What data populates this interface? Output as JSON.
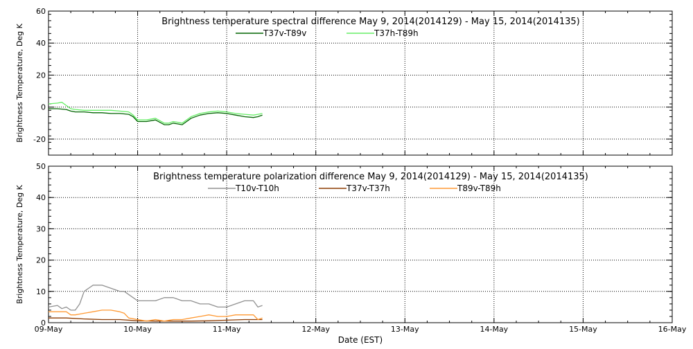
{
  "figure": {
    "xlabel": "Date (EST)",
    "x_ticks": [
      "09-May",
      "10-May",
      "11-May",
      "12-May",
      "13-May",
      "14-May",
      "15-May",
      "16-May"
    ]
  },
  "chart_data": [
    {
      "type": "line",
      "title": "Brightness temperature spectral difference     May  9, 2014(2014129) - May 15, 2014(2014135)",
      "ylabel": "Brightness Temperature, Deg K",
      "xlim": [
        0,
        7
      ],
      "ylim": [
        -30,
        60
      ],
      "y_ticks": [
        -20,
        0,
        20,
        40,
        60
      ],
      "grid": true,
      "legend_position": "top-center",
      "series": [
        {
          "name": "T37v-T89v",
          "color": "#006400",
          "x": [
            0.0,
            0.1,
            0.2,
            0.25,
            0.3,
            0.4,
            0.5,
            0.6,
            0.7,
            0.8,
            0.9,
            0.95,
            1.0,
            1.1,
            1.2,
            1.3,
            1.35,
            1.4,
            1.5,
            1.6,
            1.7,
            1.8,
            1.9,
            2.0,
            2.1,
            2.2,
            2.3,
            2.35,
            2.4
          ],
          "y": [
            -1,
            -1,
            -1.5,
            -2.5,
            -3,
            -3,
            -3.5,
            -3.5,
            -4,
            -4,
            -4.5,
            -6,
            -9,
            -9,
            -8,
            -11,
            -11,
            -10,
            -11,
            -7,
            -5,
            -4,
            -3.5,
            -4,
            -5,
            -6,
            -6.5,
            -6,
            -5
          ]
        },
        {
          "name": "T37h-T89h",
          "color": "#66ee66",
          "x": [
            0.0,
            0.1,
            0.15,
            0.2,
            0.25,
            0.3,
            0.4,
            0.5,
            0.6,
            0.7,
            0.8,
            0.9,
            0.95,
            1.0,
            1.1,
            1.2,
            1.3,
            1.35,
            1.4,
            1.5,
            1.6,
            1.7,
            1.8,
            1.9,
            2.0,
            2.1,
            2.2,
            2.3,
            2.35,
            2.4
          ],
          "y": [
            2,
            2.5,
            3,
            1,
            -1,
            -1.5,
            -2,
            -2,
            -2,
            -2,
            -2.5,
            -3,
            -5,
            -8,
            -8,
            -7,
            -10,
            -10,
            -9,
            -10,
            -6,
            -4,
            -3,
            -2.5,
            -3,
            -4,
            -4.5,
            -5,
            -4.5,
            -4
          ]
        }
      ]
    },
    {
      "type": "line",
      "title": "Brightness temperature polarization difference     May  9, 2014(2014129) - May 15, 2014(2014135)",
      "ylabel": "Brightness Temperature, Deg K",
      "xlim": [
        0,
        7
      ],
      "ylim": [
        0,
        50
      ],
      "y_ticks": [
        0,
        10,
        20,
        30,
        40,
        50
      ],
      "grid": true,
      "legend_position": "top-center",
      "series": [
        {
          "name": "T10v-T10h",
          "color": "#909090",
          "x": [
            0.0,
            0.1,
            0.15,
            0.2,
            0.25,
            0.3,
            0.35,
            0.4,
            0.5,
            0.6,
            0.7,
            0.8,
            0.85,
            0.9,
            0.95,
            1.0,
            1.1,
            1.2,
            1.3,
            1.4,
            1.5,
            1.6,
            1.7,
            1.8,
            1.9,
            2.0,
            2.1,
            2.2,
            2.3,
            2.35,
            2.4
          ],
          "y": [
            5,
            5.5,
            4.5,
            5,
            4,
            4,
            6,
            10,
            12,
            12,
            11,
            10,
            10,
            9,
            8,
            7,
            7,
            7,
            8,
            8,
            7,
            7,
            6,
            6,
            5,
            5,
            6,
            7,
            7,
            5,
            5.5
          ]
        },
        {
          "name": "T37v-T37h",
          "color": "#8b3a00",
          "x": [
            0.0,
            0.2,
            0.4,
            0.6,
            0.8,
            1.0,
            1.2,
            1.4,
            1.6,
            1.8,
            2.0,
            2.2,
            2.4
          ],
          "y": [
            1.5,
            1.5,
            1.2,
            1.0,
            1.0,
            0.6,
            0.5,
            0.5,
            0.5,
            0.6,
            0.8,
            1.0,
            1.0
          ]
        },
        {
          "name": "T89v-T89h",
          "color": "#ff9933",
          "x": [
            0.0,
            0.1,
            0.2,
            0.25,
            0.3,
            0.4,
            0.5,
            0.6,
            0.7,
            0.8,
            0.85,
            0.9,
            1.0,
            1.1,
            1.2,
            1.3,
            1.4,
            1.5,
            1.6,
            1.7,
            1.8,
            1.9,
            2.0,
            2.1,
            2.2,
            2.3,
            2.35,
            2.4
          ],
          "y": [
            3.5,
            3.5,
            3.5,
            2.5,
            2.5,
            3,
            3.5,
            4,
            4,
            3.5,
            3,
            1.5,
            1,
            0.5,
            1,
            0.5,
            1,
            1,
            1.5,
            2,
            2.5,
            2,
            2,
            2.5,
            2.5,
            2.5,
            1,
            1.5
          ]
        }
      ]
    }
  ]
}
